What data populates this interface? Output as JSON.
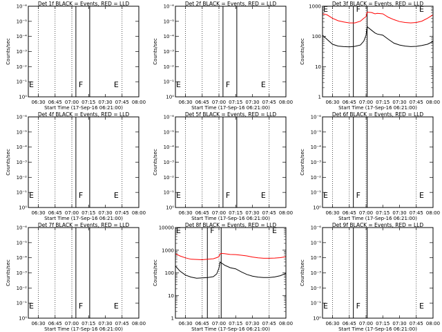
{
  "chart_data": [
    {
      "type": "line",
      "title": "Det 1f BLACK = Events, RED = LLD",
      "xlabel": "Start Time (17-Sep-16 06:21:00)",
      "ylabel": "Counts/sec",
      "x_ticks": [
        "06:30",
        "06:45",
        "07:00",
        "07:15",
        "07:30",
        "07:45",
        "08:00"
      ],
      "y_ticks": [
        "10⁰",
        "10⁻¹",
        "10⁻²",
        "10⁻³",
        "10⁻⁴",
        "10⁻⁵",
        "10⁻⁶"
      ],
      "log_y": true,
      "markers": [
        {
          "label": "E",
          "time": "06:21"
        },
        {
          "label": "F",
          "time": "07:16"
        },
        {
          "label": "E",
          "time": "07:37"
        }
      ],
      "series": []
    },
    {
      "type": "line",
      "title": "Det 2f BLACK = Events, RED = LLD",
      "xlabel": "Start Time (17-Sep-16 06:21:00)",
      "ylabel": "Counts/sec",
      "x_ticks": [
        "06:30",
        "06:45",
        "07:00",
        "07:15",
        "07:30",
        "07:45",
        "08:00"
      ],
      "y_ticks": [
        "10⁰",
        "10⁻¹",
        "10⁻²",
        "10⁻³",
        "10⁻⁴",
        "10⁻⁵",
        "10⁻⁶"
      ],
      "log_y": true,
      "markers": [
        {
          "label": "E",
          "time": "06:21"
        },
        {
          "label": "F",
          "time": "07:16"
        },
        {
          "label": "E",
          "time": "07:37"
        }
      ],
      "series": []
    },
    {
      "type": "line",
      "title": "Det 3f BLACK = Events, RED = LLD",
      "xlabel": "Start Time (17-Sep-16 06:21:00)",
      "ylabel": "Counts/sec",
      "x_ticks": [
        "06:30",
        "06:45",
        "07:00",
        "07:15",
        "07:30",
        "07:45",
        "08:00"
      ],
      "y_ticks": [
        "1",
        "10",
        "100",
        "1000"
      ],
      "log_y": true,
      "markers": [
        {
          "label": "E",
          "time": "06:21"
        },
        {
          "label": "F",
          "time": "07:01"
        },
        {
          "label": "E",
          "time": "07:47"
        }
      ],
      "series": [
        {
          "name": "LLD",
          "color": "#ff0000",
          "x": [
            "06:21",
            "06:25",
            "06:30",
            "06:35",
            "06:40",
            "06:45",
            "06:50",
            "06:55",
            "06:58",
            "07:00",
            "07:01",
            "07:05",
            "07:08",
            "07:10",
            "07:15",
            "07:20",
            "07:25",
            "07:30",
            "07:35",
            "07:40",
            "07:45",
            "07:50",
            "07:55",
            "08:00"
          ],
          "y": [
            560,
            520,
            400,
            330,
            300,
            280,
            280,
            320,
            400,
            450,
            640,
            620,
            560,
            580,
            560,
            430,
            360,
            310,
            290,
            280,
            290,
            320,
            400,
            520
          ]
        },
        {
          "name": "Events",
          "color": "#000000",
          "x": [
            "06:21",
            "06:25",
            "06:30",
            "06:35",
            "06:40",
            "06:45",
            "06:50",
            "06:55",
            "06:58",
            "07:00",
            "07:01",
            "07:05",
            "07:08",
            "07:10",
            "07:15",
            "07:20",
            "07:25",
            "07:30",
            "07:35",
            "07:40",
            "07:45",
            "07:50",
            "07:55",
            "08:00"
          ],
          "y": [
            110,
            80,
            55,
            48,
            46,
            45,
            47,
            52,
            70,
            110,
            210,
            160,
            130,
            120,
            110,
            80,
            60,
            52,
            48,
            46,
            47,
            50,
            55,
            68
          ]
        }
      ]
    },
    {
      "type": "line",
      "title": "Det 4f BLACK = Events, RED = LLD",
      "xlabel": "Start Time (17-Sep-16 06:21:00)",
      "ylabel": "Counts/sec",
      "x_ticks": [
        "06:30",
        "06:45",
        "07:00",
        "07:15",
        "07:30",
        "07:45",
        "08:00"
      ],
      "y_ticks": [
        "10⁰",
        "10⁻¹",
        "10⁻²",
        "10⁻³",
        "10⁻⁴",
        "10⁻⁵",
        "10⁻⁶"
      ],
      "log_y": true,
      "markers": [
        {
          "label": "E",
          "time": "06:21"
        },
        {
          "label": "F",
          "time": "07:16"
        },
        {
          "label": "E",
          "time": "07:37"
        }
      ],
      "series": []
    },
    {
      "type": "line",
      "title": "Det 5f BLACK = Events, RED = LLD",
      "xlabel": "Start Time (17-Sep-16 06:21:00)",
      "ylabel": "Counts/sec",
      "x_ticks": [
        "06:30",
        "06:45",
        "07:00",
        "07:15",
        "07:30",
        "07:45",
        "08:00"
      ],
      "y_ticks": [
        "10⁰",
        "10⁻¹",
        "10⁻²",
        "10⁻³",
        "10⁻⁴",
        "10⁻⁵",
        "10⁻⁶"
      ],
      "log_y": true,
      "markers": [
        {
          "label": "E",
          "time": "06:21"
        },
        {
          "label": "F",
          "time": "07:16"
        },
        {
          "label": "E",
          "time": "07:37"
        }
      ],
      "series": []
    },
    {
      "type": "line",
      "title": "Det 6f BLACK = Events, RED = LLD",
      "xlabel": "Start Time (17-Sep-16 06:21:00)",
      "ylabel": "Counts/sec",
      "x_ticks": [
        "06:30",
        "06:45",
        "07:00",
        "07:15",
        "07:30",
        "07:45",
        "08:00"
      ],
      "y_ticks": [
        "10⁰",
        "10⁻¹",
        "10⁻²",
        "10⁻³",
        "10⁻⁴",
        "10⁻⁵",
        "10⁻⁶"
      ],
      "log_y": true,
      "markers": [
        {
          "label": "E",
          "time": "06:21"
        },
        {
          "label": "F",
          "time": "07:01"
        },
        {
          "label": "E",
          "time": "07:47"
        }
      ],
      "series": []
    },
    {
      "type": "line",
      "title": "Det 7f BLACK = Events, RED = LLD",
      "xlabel": "Start Time (17-Sep-16 06:21:00)",
      "ylabel": "Counts/sec",
      "x_ticks": [
        "06:30",
        "06:45",
        "07:00",
        "07:15",
        "07:30",
        "07:45",
        "08:00"
      ],
      "y_ticks": [
        "10⁰",
        "10⁻¹",
        "10⁻²",
        "10⁻³",
        "10⁻⁴",
        "10⁻⁵",
        "10⁻⁶"
      ],
      "log_y": true,
      "markers": [
        {
          "label": "E",
          "time": "06:21"
        },
        {
          "label": "F",
          "time": "07:16"
        },
        {
          "label": "E",
          "time": "07:37"
        }
      ],
      "series": []
    },
    {
      "type": "line",
      "title": "Det 8f BLACK = Events, RED = LLD",
      "xlabel": "Start Time (17-Sep-16 06:21:00)",
      "ylabel": "Counts/sec",
      "x_ticks": [
        "06:30",
        "06:45",
        "07:00",
        "07:15",
        "07:30",
        "07:45",
        "08:00"
      ],
      "y_ticks": [
        "1",
        "10",
        "100",
        "1000",
        "10000"
      ],
      "log_y": true,
      "markers": [
        {
          "label": "E",
          "time": "06:21"
        },
        {
          "label": "F",
          "time": "07:02"
        },
        {
          "label": "E",
          "time": "07:47"
        }
      ],
      "series": [
        {
          "name": "LLD",
          "color": "#ff0000",
          "x": [
            "06:21",
            "06:25",
            "06:30",
            "06:35",
            "06:40",
            "06:45",
            "06:50",
            "06:55",
            "06:58",
            "07:00",
            "07:01",
            "07:02",
            "07:05",
            "07:10",
            "07:15",
            "07:20",
            "07:25",
            "07:30",
            "07:35",
            "07:40",
            "07:45",
            "07:50",
            "07:55",
            "08:00"
          ],
          "y": [
            700,
            560,
            460,
            400,
            390,
            380,
            400,
            420,
            470,
            520,
            680,
            720,
            700,
            650,
            640,
            600,
            560,
            500,
            460,
            440,
            440,
            450,
            470,
            520
          ]
        },
        {
          "name": "Events",
          "color": "#000000",
          "x": [
            "06:21",
            "06:25",
            "06:30",
            "06:35",
            "06:40",
            "06:45",
            "06:50",
            "06:55",
            "06:58",
            "07:00",
            "07:01",
            "07:02",
            "07:05",
            "07:10",
            "07:15",
            "07:20",
            "07:25",
            "07:30",
            "07:35",
            "07:40",
            "07:45",
            "07:50",
            "07:55",
            "08:00"
          ],
          "y": [
            200,
            120,
            80,
            65,
            58,
            60,
            62,
            68,
            90,
            160,
            300,
            280,
            220,
            170,
            150,
            110,
            85,
            72,
            65,
            62,
            62,
            66,
            75,
            95
          ]
        }
      ]
    },
    {
      "type": "line",
      "title": "Det 9f BLACK = Events, RED = LLD",
      "xlabel": "Start Time (17-Sep-16 06:21:00)",
      "ylabel": "Counts/sec",
      "x_ticks": [
        "06:30",
        "06:45",
        "07:00",
        "07:15",
        "07:30",
        "07:45",
        "08:00"
      ],
      "y_ticks": [
        "10⁰",
        "10⁻¹",
        "10⁻²",
        "10⁻³",
        "10⁻⁴",
        "10⁻⁵",
        "10⁻⁶"
      ],
      "log_y": true,
      "markers": [
        {
          "label": "E",
          "time": "06:21"
        },
        {
          "label": "F",
          "time": "07:01"
        },
        {
          "label": "E",
          "time": "07:47"
        }
      ],
      "series": []
    }
  ]
}
